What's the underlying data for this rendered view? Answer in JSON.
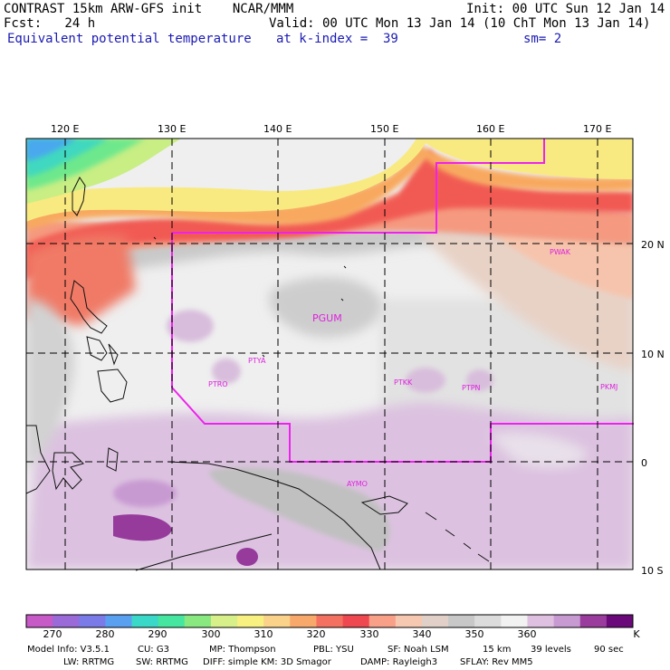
{
  "header": {
    "title_left": "CONTRAST 15km ARW-GFS init    NCAR/MMM",
    "init": "Init: 00 UTC Sun 12 Jan 14",
    "fcst": "Fcst:   24 h",
    "valid": "Valid: 00 UTC Mon 13 Jan 14 (10 ChT Mon 13 Jan 14)",
    "field": "Equivalent potential temperature",
    "level": "at k-index =  39",
    "smoothing": "sm= 2"
  },
  "axes": {
    "lon_ticks": [
      "120 E",
      "130 E",
      "140 E",
      "150 E",
      "160 E",
      "170 E"
    ],
    "lat_ticks": [
      "20 N",
      "10 N",
      "0",
      "10 S"
    ]
  },
  "stations": [
    {
      "id": "PGUM"
    },
    {
      "id": "PWAK"
    },
    {
      "id": "PTYA"
    },
    {
      "id": "PTRO"
    },
    {
      "id": "PTKK"
    },
    {
      "id": "PTPN"
    },
    {
      "id": "PKMJ"
    },
    {
      "id": "AYMO"
    }
  ],
  "colorbar": {
    "labels": [
      "270",
      "280",
      "290",
      "300",
      "310",
      "320",
      "330",
      "340",
      "350",
      "360"
    ],
    "unit": "K",
    "colors": [
      "#c85ac8",
      "#9a6ad8",
      "#7a7ae8",
      "#5aa0f0",
      "#3ad8c8",
      "#46e6a0",
      "#8ae880",
      "#d8f08a",
      "#f8f080",
      "#fad28a",
      "#f8a86a",
      "#f47060",
      "#f04850",
      "#f8a088",
      "#f6c8b0",
      "#e0d0c8",
      "#c8c8c8",
      "#dcdcdc",
      "#f2f2f2",
      "#e0c0e0",
      "#c89ad2",
      "#9a3c9e",
      "#6a0a7a"
    ]
  },
  "footer": {
    "model": "Model Info: V3.5.1",
    "cu": "CU: G3",
    "mp": "MP: Thompson",
    "pbl": "PBL: YSU",
    "sf": "SF: Noah LSM",
    "res": "15 km",
    "levels": "39 levels",
    "dt": "90 sec",
    "lw": "LW: RRTMG",
    "sw": "SW: RRTMG",
    "diff": "DIFF: simple KM: 3D Smagor",
    "damp": "DAMP: Rayleigh3",
    "sflay": "SFLAY: Rev MM5"
  }
}
